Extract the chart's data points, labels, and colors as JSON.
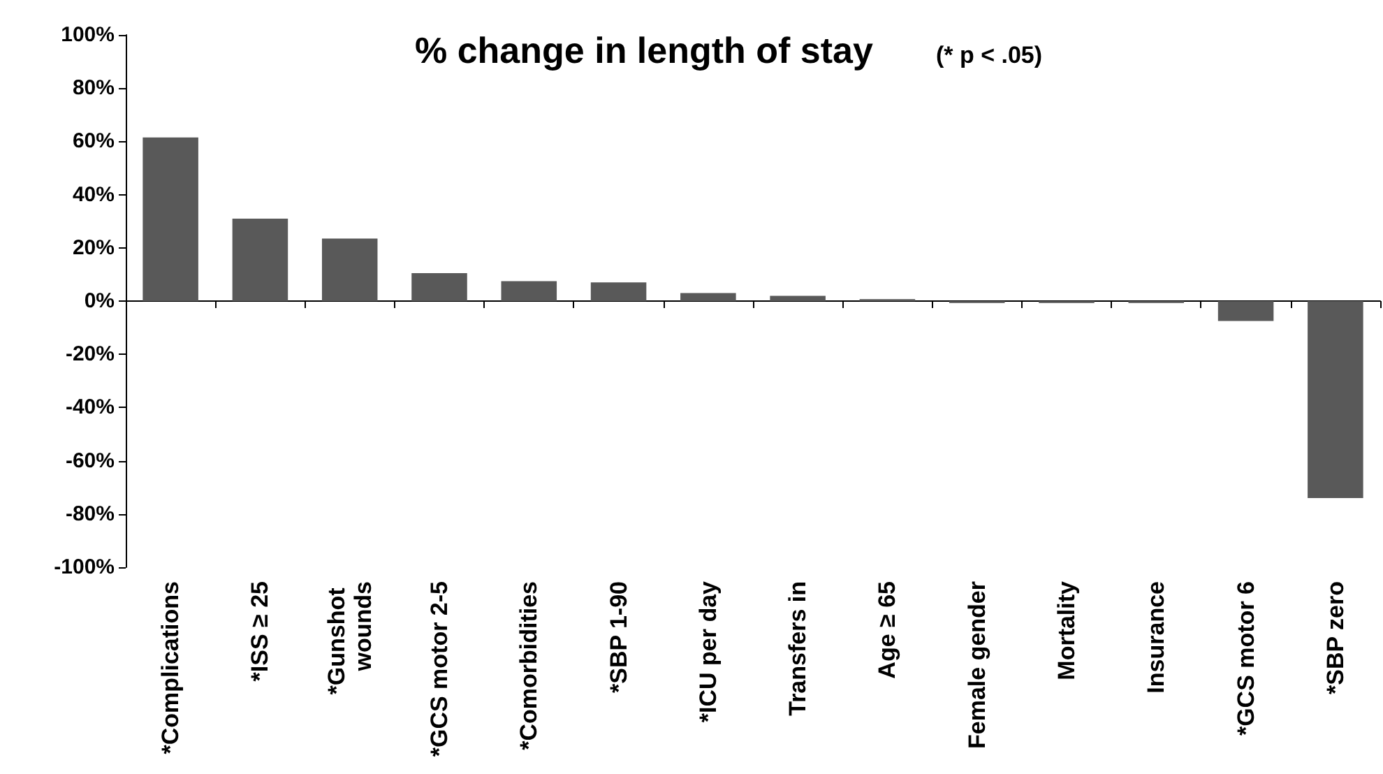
{
  "chart_data": {
    "type": "bar",
    "title": "% change in length of stay",
    "subtitle": "(* p < .05)",
    "categories": [
      "*Complications",
      "*ISS ≥ 25",
      "*Gunshot wounds",
      "*GCS motor 2-5",
      "*Comorbidities",
      "*SBP 1-90",
      "*ICU per day",
      "Transfers in",
      "Age ≥ 65",
      "Female gender",
      "Mortality",
      "Insurance",
      "*GCS motor 6",
      "*SBP zero"
    ],
    "values": [
      61.5,
      31,
      23.5,
      10.5,
      7.5,
      7,
      3,
      2,
      0.7,
      -0.7,
      -0.7,
      -0.7,
      -7.5,
      -74
    ],
    "color": "#595959",
    "ylim": [
      -100,
      100
    ],
    "yticks": [
      {
        "value": -100,
        "label": "-100%"
      },
      {
        "value": -80,
        "label": "-80%"
      },
      {
        "value": -60,
        "label": "-60%"
      },
      {
        "value": -40,
        "label": "-40%"
      },
      {
        "value": -20,
        "label": "-20%"
      },
      {
        "value": 0,
        "label": "0%"
      },
      {
        "value": 20,
        "label": "20%"
      },
      {
        "value": 40,
        "label": "40%"
      },
      {
        "value": 60,
        "label": "60%"
      },
      {
        "value": 80,
        "label": "80%"
      },
      {
        "value": 100,
        "label": "100%"
      }
    ]
  }
}
